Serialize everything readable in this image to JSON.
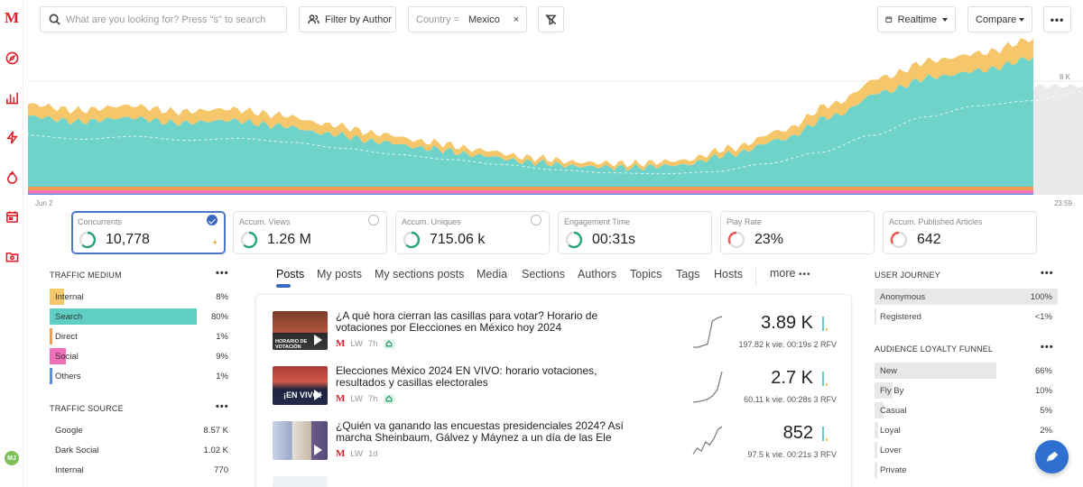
{
  "search": {
    "placeholder": "What are you looking for? Press \"s\" to search"
  },
  "toolbar": {
    "filter_author": "Filter by Author",
    "country_key": "Country =",
    "country_value": "Mexico",
    "clear": "×",
    "realtime": "Realtime",
    "compare": "Compare",
    "more": "•••"
  },
  "chart": {
    "y_tick": "8 K",
    "x_start": "Jun 2",
    "x_end": "23:59",
    "colors": {
      "search": "#6fd3c9",
      "internal": "#f5c76a",
      "direct": "#f19a52",
      "social": "#f06fb9",
      "others": "#5b8de0",
      "comparison": "#dcdcdc"
    }
  },
  "chart_data": {
    "type": "area",
    "x_range": [
      "Jun 2",
      "23:59"
    ],
    "series": [
      {
        "name": "Search",
        "values": [
          5200,
          4800,
          5100,
          4700,
          4900,
          4500,
          3900,
          3300,
          2800,
          2300,
          1800,
          1500,
          1400,
          1600,
          2400,
          3500,
          5200,
          7000,
          8100,
          8600,
          9500
        ]
      },
      {
        "name": "Internal",
        "values": [
          900,
          850,
          900,
          850,
          850,
          800,
          700,
          600,
          500,
          420,
          350,
          300,
          300,
          330,
          450,
          650,
          900,
          1100,
          1250,
          1300,
          1400
        ]
      }
    ]
  },
  "kpis": [
    {
      "label": "Concurrents",
      "value": "10,778"
    },
    {
      "label": "Accum. Views",
      "value": "1.26 M"
    },
    {
      "label": "Accum. Uniques",
      "value": "715.06 k"
    },
    {
      "label": "Engagement Time",
      "value": "00:31s"
    },
    {
      "label": "Play Rate",
      "value": "23%"
    },
    {
      "label": "Accum. Published Articles",
      "value": "642"
    }
  ],
  "traffic_medium": {
    "title": "TRAFFIC MEDIUM",
    "items": [
      {
        "name": "Internal",
        "pct": "8%",
        "value": 8,
        "color": "#f5c76a"
      },
      {
        "name": "Search",
        "pct": "80%",
        "value": 80,
        "color": "#5fcfc4"
      },
      {
        "name": "Direct",
        "pct": "1%",
        "value": 1,
        "color": "#f19a52"
      },
      {
        "name": "Social",
        "pct": "9%",
        "value": 9,
        "color": "#f06fb9"
      },
      {
        "name": "Others",
        "pct": "1%",
        "value": 1,
        "color": "#5b8de0"
      }
    ]
  },
  "traffic_source": {
    "title": "TRAFFIC SOURCE",
    "items": [
      {
        "name": "Google",
        "value": "8.57 K"
      },
      {
        "name": "Dark Social",
        "value": "1.02 K"
      },
      {
        "name": "Internal",
        "value": "770"
      }
    ]
  },
  "tabs": [
    "Posts",
    "My posts",
    "My sections posts",
    "Media",
    "Sections",
    "Authors",
    "Topics",
    "Tags",
    "Hosts",
    "more"
  ],
  "posts": [
    {
      "title": "¿A qué hora cierran las casillas para votar? Horario de votaciones por Elecciones en México hoy 2024",
      "author": "LW",
      "age": "7h",
      "value": "3.89 K",
      "sub": "197.82 k vie.  00:19s  2 RFV",
      "thumb_text": "HORARIO DE VOTACIÓN",
      "spark": [
        0,
        0,
        0.05,
        0.1,
        0.85,
        0.95,
        1.0
      ]
    },
    {
      "title": "Elecciones México 2024 EN VIVO: horario votaciones, resultados y casillas electorales",
      "author": "LW",
      "age": "7h",
      "value": "2.7 K",
      "sub": "60.11 k vie.  00:28s  3 RFV",
      "thumb_text": "¡EN VIVO!",
      "spark": [
        0,
        0.02,
        0.05,
        0.1,
        0.2,
        0.4,
        1.0
      ]
    },
    {
      "title": "¿Quién va ganando las encuestas presidenciales 2024? Así marcha Sheinbaum, Gálvez y Máynez a un día de las Ele",
      "author": "LW",
      "age": "1d",
      "value": "852",
      "sub": "97.5 k vie.  00:21s  3 RFV",
      "thumb_text": "",
      "spark": [
        0.1,
        0.3,
        0.2,
        0.5,
        0.4,
        0.6,
        0.9,
        1.0
      ]
    }
  ],
  "user_journey": {
    "title": "USER JOURNEY",
    "items": [
      {
        "name": "Anonymous",
        "pct": "100%",
        "value": 100
      },
      {
        "name": "Registered",
        "pct": "<1%",
        "value": 0.5
      }
    ]
  },
  "loyalty": {
    "title": "AUDIENCE LOYALTY FUNNEL",
    "items": [
      {
        "name": "New",
        "pct": "66%",
        "value": 66
      },
      {
        "name": "Fly By",
        "pct": "10%",
        "value": 10
      },
      {
        "name": "Casual",
        "pct": "5%",
        "value": 5
      },
      {
        "name": "Loyal",
        "pct": "2%",
        "value": 2
      },
      {
        "name": "Lover",
        "pct": "",
        "value": 1
      },
      {
        "name": "Private",
        "pct": "",
        "value": 1
      }
    ]
  },
  "avatar": "MJ",
  "icons": [
    "logo-m",
    "compass-icon",
    "bar-chart-icon",
    "bolt-icon",
    "flame-icon",
    "calendar-icon",
    "folder-icon"
  ]
}
